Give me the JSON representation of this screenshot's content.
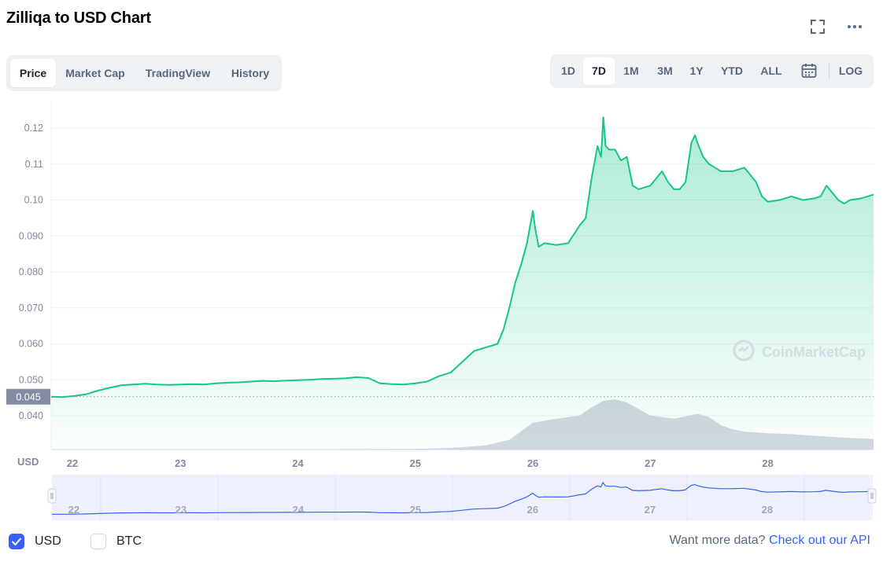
{
  "title": "Zilliqa to USD Chart",
  "tabs": [
    {
      "label": "Price",
      "active": true
    },
    {
      "label": "Market Cap",
      "active": false
    },
    {
      "label": "TradingView",
      "active": false
    },
    {
      "label": "History",
      "active": false
    }
  ],
  "ranges": [
    {
      "label": "1D",
      "active": false
    },
    {
      "label": "7D",
      "active": true
    },
    {
      "label": "1M",
      "active": false
    },
    {
      "label": "3M",
      "active": false
    },
    {
      "label": "1Y",
      "active": false
    },
    {
      "label": "YTD",
      "active": false
    },
    {
      "label": "ALL",
      "active": false
    }
  ],
  "log_label": "LOG",
  "icons": {
    "fullscreen": "expand-icon",
    "more": "more-icon",
    "calendar": "calendar-icon"
  },
  "colors": {
    "accent": "#3861fb",
    "line": "#16c784",
    "volume": "#cfd2de",
    "navigator_line": "#3861fb"
  },
  "watermark": "CoinMarketCap",
  "legend": [
    {
      "label": "USD",
      "checked": true
    },
    {
      "label": "BTC",
      "checked": false
    }
  ],
  "api": {
    "text": "Want more data?",
    "link": "Check out our API"
  },
  "chart_data": {
    "type": "area",
    "ylabel": "USD",
    "ylim": [
      0.036,
      0.126
    ],
    "y_ticks": [
      "0.040",
      "0.050",
      "0.060",
      "0.070",
      "0.080",
      "0.090",
      "0.10",
      "0.11",
      "0.12"
    ],
    "y_tick_values": [
      0.04,
      0.05,
      0.06,
      0.07,
      0.08,
      0.09,
      0.1,
      0.11,
      0.12
    ],
    "x_ticks": [
      "22",
      "23",
      "24",
      "25",
      "26",
      "27",
      "28"
    ],
    "x_tick_values": [
      22,
      23,
      24,
      25,
      26,
      27,
      28
    ],
    "xlim": [
      21.9,
      28.9
    ],
    "current_price": "0.045",
    "current_price_value": 0.0453,
    "grid": true,
    "series": [
      {
        "name": "USD",
        "x": [
          21.9,
          22.0,
          22.1,
          22.2,
          22.3,
          22.4,
          22.5,
          22.6,
          22.7,
          22.8,
          22.9,
          23.0,
          23.1,
          23.2,
          23.3,
          23.4,
          23.5,
          23.6,
          23.7,
          23.8,
          23.9,
          24.0,
          24.1,
          24.2,
          24.3,
          24.4,
          24.5,
          24.6,
          24.7,
          24.8,
          24.9,
          25.0,
          25.1,
          25.2,
          25.3,
          25.4,
          25.5,
          25.6,
          25.7,
          25.75,
          25.8,
          25.85,
          25.9,
          25.95,
          26.0,
          26.02,
          26.05,
          26.1,
          26.2,
          26.3,
          26.4,
          26.45,
          26.5,
          26.55,
          26.58,
          26.6,
          26.62,
          26.65,
          26.7,
          26.75,
          26.8,
          26.85,
          26.9,
          27.0,
          27.05,
          27.1,
          27.15,
          27.2,
          27.25,
          27.3,
          27.35,
          27.38,
          27.4,
          27.45,
          27.5,
          27.55,
          27.6,
          27.7,
          27.8,
          27.9,
          27.95,
          28.0,
          28.1,
          28.2,
          28.3,
          28.4,
          28.45,
          28.5,
          28.6,
          28.65,
          28.7,
          28.8,
          28.9
        ],
        "values": [
          0.0453,
          0.0452,
          0.0455,
          0.046,
          0.047,
          0.0478,
          0.0485,
          0.0487,
          0.0489,
          0.0487,
          0.0486,
          0.0487,
          0.0488,
          0.0487,
          0.049,
          0.0492,
          0.0493,
          0.0495,
          0.0497,
          0.0496,
          0.0498,
          0.0499,
          0.05,
          0.0502,
          0.0503,
          0.0504,
          0.0507,
          0.0505,
          0.049,
          0.0488,
          0.0487,
          0.049,
          0.0495,
          0.051,
          0.052,
          0.055,
          0.058,
          0.059,
          0.06,
          0.064,
          0.07,
          0.077,
          0.082,
          0.088,
          0.097,
          0.092,
          0.087,
          0.088,
          0.0875,
          0.088,
          0.093,
          0.095,
          0.106,
          0.115,
          0.112,
          0.123,
          0.115,
          0.114,
          0.114,
          0.111,
          0.112,
          0.104,
          0.103,
          0.104,
          0.106,
          0.108,
          0.105,
          0.103,
          0.103,
          0.105,
          0.116,
          0.118,
          0.116,
          0.112,
          0.11,
          0.109,
          0.108,
          0.108,
          0.109,
          0.105,
          0.101,
          0.0995,
          0.1,
          0.101,
          0.1,
          0.1005,
          0.101,
          0.104,
          0.1,
          0.099,
          0.1,
          0.1005,
          0.1015
        ]
      },
      {
        "name": "Volume",
        "x": [
          21.9,
          22.5,
          23.0,
          23.5,
          24.0,
          24.5,
          25.0,
          25.2,
          25.4,
          25.6,
          25.8,
          26.0,
          26.2,
          26.4,
          26.5,
          26.6,
          26.7,
          26.8,
          26.9,
          27.0,
          27.2,
          27.4,
          27.5,
          27.6,
          27.7,
          27.8,
          28.0,
          28.2,
          28.4,
          28.6,
          28.9
        ],
        "values": [
          0.5,
          0.5,
          0.5,
          0.5,
          0.5,
          0.6,
          0.8,
          1.5,
          3,
          5,
          12,
          33,
          38,
          42,
          52,
          60,
          62,
          58,
          50,
          42,
          38,
          44,
          40,
          30,
          25,
          22,
          20,
          19,
          17,
          15,
          13
        ]
      }
    ]
  }
}
